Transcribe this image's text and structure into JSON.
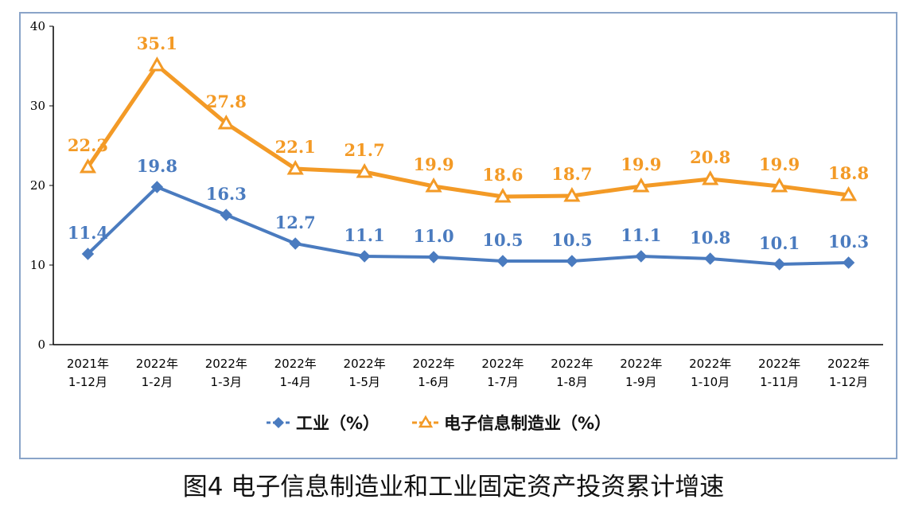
{
  "caption": "图4 电子信息制造业和工业固定资产投资累计增速",
  "colors": {
    "industry": "#4a7bbf",
    "electronics": "#f39a26",
    "axis": "#000000",
    "frame": "#8aa4c8"
  },
  "chart_data": {
    "type": "line",
    "categories": [
      [
        "2021年",
        "1-12月"
      ],
      [
        "2022年",
        "1-2月"
      ],
      [
        "2022年",
        "1-3月"
      ],
      [
        "2022年",
        "1-4月"
      ],
      [
        "2022年",
        "1-5月"
      ],
      [
        "2022年",
        "1-6月"
      ],
      [
        "2022年",
        "1-7月"
      ],
      [
        "2022年",
        "1-8月"
      ],
      [
        "2022年",
        "1-9月"
      ],
      [
        "2022年",
        "1-10月"
      ],
      [
        "2022年",
        "1-11月"
      ],
      [
        "2022年",
        "1-12月"
      ]
    ],
    "yticks": [
      "0",
      "10",
      "20",
      "30",
      "40"
    ],
    "ylim": [
      0,
      40
    ],
    "series": [
      {
        "name": "工业（%）",
        "marker": "diamond",
        "color": "#4a7bbf",
        "values": [
          11.4,
          19.8,
          16.3,
          12.7,
          11.1,
          11.0,
          10.5,
          10.5,
          11.1,
          10.8,
          10.1,
          10.3
        ],
        "labels": [
          "11.4",
          "19.8",
          "16.3",
          "12.7",
          "11.1",
          "11.0",
          "10.5",
          "10.5",
          "11.1",
          "10.8",
          "10.1",
          "10.3"
        ]
      },
      {
        "name": "电子信息制造业（%）",
        "marker": "triangle",
        "color": "#f39a26",
        "values": [
          22.3,
          35.1,
          27.8,
          22.1,
          21.7,
          19.9,
          18.6,
          18.7,
          19.9,
          20.8,
          19.9,
          18.8
        ],
        "labels": [
          "22.3",
          "35.1",
          "27.8",
          "22.1",
          "21.7",
          "19.9",
          "18.6",
          "18.7",
          "19.9",
          "20.8",
          "19.9",
          "18.8"
        ]
      }
    ],
    "grid": false,
    "legend": "bottom"
  }
}
